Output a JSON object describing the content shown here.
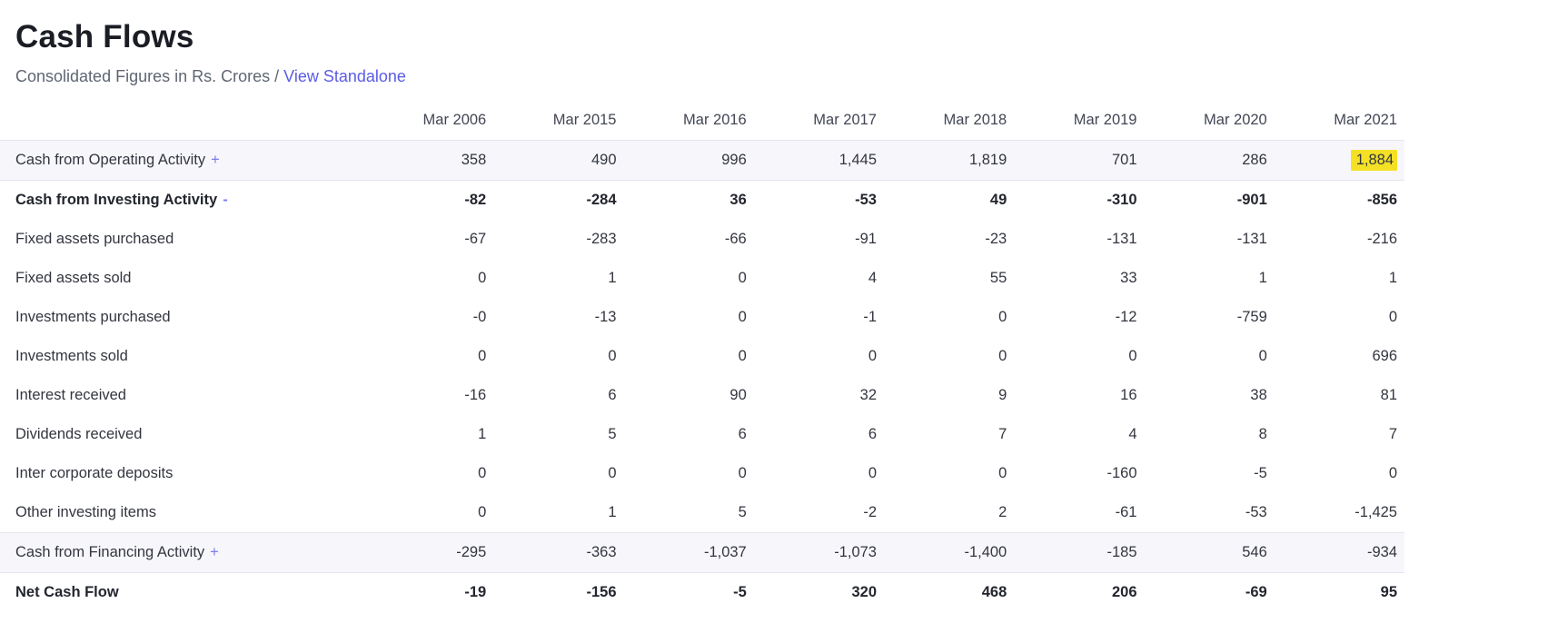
{
  "page": {
    "title": "Cash Flows",
    "subtitle_text": "Consolidated Figures in Rs. Crores /",
    "standalone_link": "View Standalone"
  },
  "colors": {
    "accent": "#5b5ce6",
    "toggle": "#7d7ef0",
    "stripe": "#f7f7fb",
    "border": "#e4e6ef",
    "border_strong": "#c9ccd8",
    "highlight": "#f4e125"
  },
  "table": {
    "columns": [
      "Mar 2006",
      "Mar 2015",
      "Mar 2016",
      "Mar 2017",
      "Mar 2018",
      "Mar 2019",
      "Mar 2020",
      "Mar 2021"
    ],
    "rows": [
      {
        "label": "Cash from Operating Activity",
        "toggle": "+",
        "style": "striped",
        "values": [
          "358",
          "490",
          "996",
          "1,445",
          "1,819",
          "701",
          "286",
          "1,884"
        ],
        "highlight_col": 7
      },
      {
        "label": "Cash from Investing Activity",
        "toggle": "-",
        "style": "bold",
        "values": [
          "-82",
          "-284",
          "36",
          "-53",
          "49",
          "-310",
          "-901",
          "-856"
        ]
      },
      {
        "label": "Fixed assets purchased",
        "values": [
          "-67",
          "-283",
          "-66",
          "-91",
          "-23",
          "-131",
          "-131",
          "-216"
        ]
      },
      {
        "label": "Fixed assets sold",
        "values": [
          "0",
          "1",
          "0",
          "4",
          "55",
          "33",
          "1",
          "1"
        ]
      },
      {
        "label": "Investments purchased",
        "values": [
          "-0",
          "-13",
          "0",
          "-1",
          "0",
          "-12",
          "-759",
          "0"
        ]
      },
      {
        "label": "Investments sold",
        "values": [
          "0",
          "0",
          "0",
          "0",
          "0",
          "0",
          "0",
          "696"
        ]
      },
      {
        "label": "Interest received",
        "values": [
          "-16",
          "6",
          "90",
          "32",
          "9",
          "16",
          "38",
          "81"
        ]
      },
      {
        "label": "Dividends received",
        "values": [
          "1",
          "5",
          "6",
          "6",
          "7",
          "4",
          "8",
          "7"
        ]
      },
      {
        "label": "Inter corporate deposits",
        "values": [
          "0",
          "0",
          "0",
          "0",
          "0",
          "-160",
          "-5",
          "0"
        ]
      },
      {
        "label": "Other investing items",
        "values": [
          "0",
          "1",
          "5",
          "-2",
          "2",
          "-61",
          "-53",
          "-1,425"
        ]
      },
      {
        "label": "Cash from Financing Activity",
        "toggle": "+",
        "style": "striped",
        "values": [
          "-295",
          "-363",
          "-1,037",
          "-1,073",
          "-1,400",
          "-185",
          "546",
          "-934"
        ]
      },
      {
        "label": "Net Cash Flow",
        "style": "strong",
        "values": [
          "-19",
          "-156",
          "-5",
          "320",
          "468",
          "206",
          "-69",
          "95"
        ]
      }
    ]
  }
}
